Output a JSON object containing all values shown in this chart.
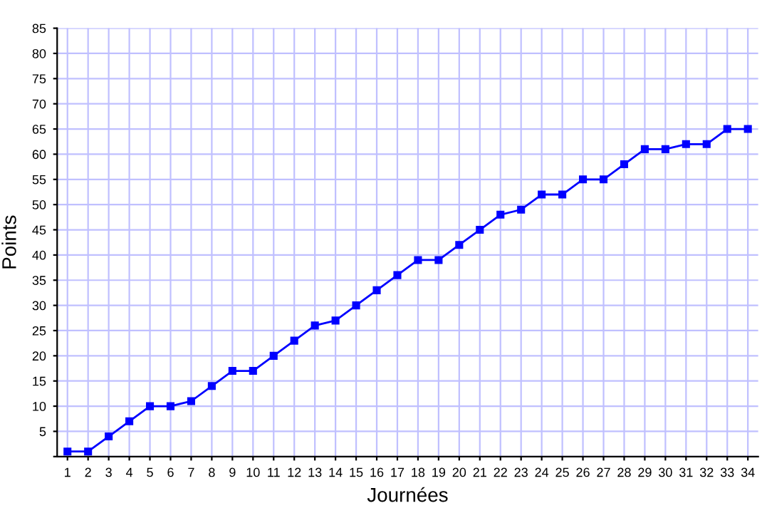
{
  "chart_data": {
    "type": "line",
    "xlabel": "Journées",
    "ylabel": "Points",
    "x": [
      1,
      2,
      3,
      4,
      5,
      6,
      7,
      8,
      9,
      10,
      11,
      12,
      13,
      14,
      15,
      16,
      17,
      18,
      19,
      20,
      21,
      22,
      23,
      24,
      25,
      26,
      27,
      28,
      29,
      30,
      31,
      32,
      33,
      34
    ],
    "series": [
      {
        "color": "#0000ff",
        "values": [
          1,
          1,
          4,
          7,
          10,
          10,
          11,
          14,
          17,
          17,
          20,
          23,
          26,
          27,
          30,
          33,
          36,
          39,
          39,
          42,
          45,
          48,
          49,
          52,
          52,
          55,
          55,
          58,
          61,
          61,
          62,
          62,
          65,
          65
        ]
      }
    ],
    "xlim": [
      0.5,
      34.5
    ],
    "xticks": [
      1,
      2,
      3,
      4,
      5,
      6,
      7,
      8,
      9,
      10,
      11,
      12,
      13,
      14,
      15,
      16,
      17,
      18,
      19,
      20,
      21,
      22,
      23,
      24,
      25,
      26,
      27,
      28,
      29,
      30,
      31,
      32,
      33,
      34
    ],
    "ylim": [
      0,
      85
    ],
    "yticks": [
      {
        "value": 0,
        "label": null
      },
      5,
      10,
      15,
      20,
      25,
      30,
      35,
      40,
      45,
      50,
      55,
      60,
      65,
      70,
      75,
      80,
      85
    ],
    "grid": true,
    "marker": "square",
    "line_style": "solid"
  }
}
